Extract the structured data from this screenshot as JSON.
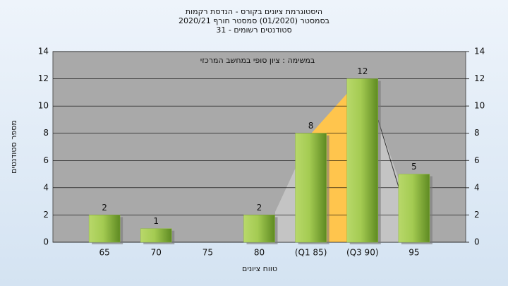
{
  "chart_data": {
    "type": "bar",
    "title": "היסטוגרמת ציונים בקורס - הנדסת רקמות",
    "subtitle": "בסמסטר (01/2020) סמסטר חורף 2020/21",
    "subtitle2": "סטודנטים רשומים - 31",
    "annotation": "במשימה : ציון סופי במחשב המרכזי",
    "x_label": "טווח ציונים",
    "y_label": "מספר סטודנטים",
    "categories": [
      "65",
      "70",
      "75",
      "80",
      "(Q1 85)",
      "(Q3 90)",
      "95"
    ],
    "values": [
      2,
      1,
      0,
      2,
      8,
      12,
      5
    ],
    "value_labels": [
      "2",
      "1",
      null,
      "2",
      "8",
      "12",
      "5"
    ],
    "color": "#8fbc3c",
    "ylim": [
      0,
      14
    ],
    "yticks": [
      0,
      2,
      4,
      6,
      8,
      10,
      12,
      14
    ],
    "y2lim": [
      0,
      14
    ],
    "y2ticks": [
      0,
      2,
      4,
      6,
      8,
      10,
      12,
      14
    ],
    "grid": true
  }
}
